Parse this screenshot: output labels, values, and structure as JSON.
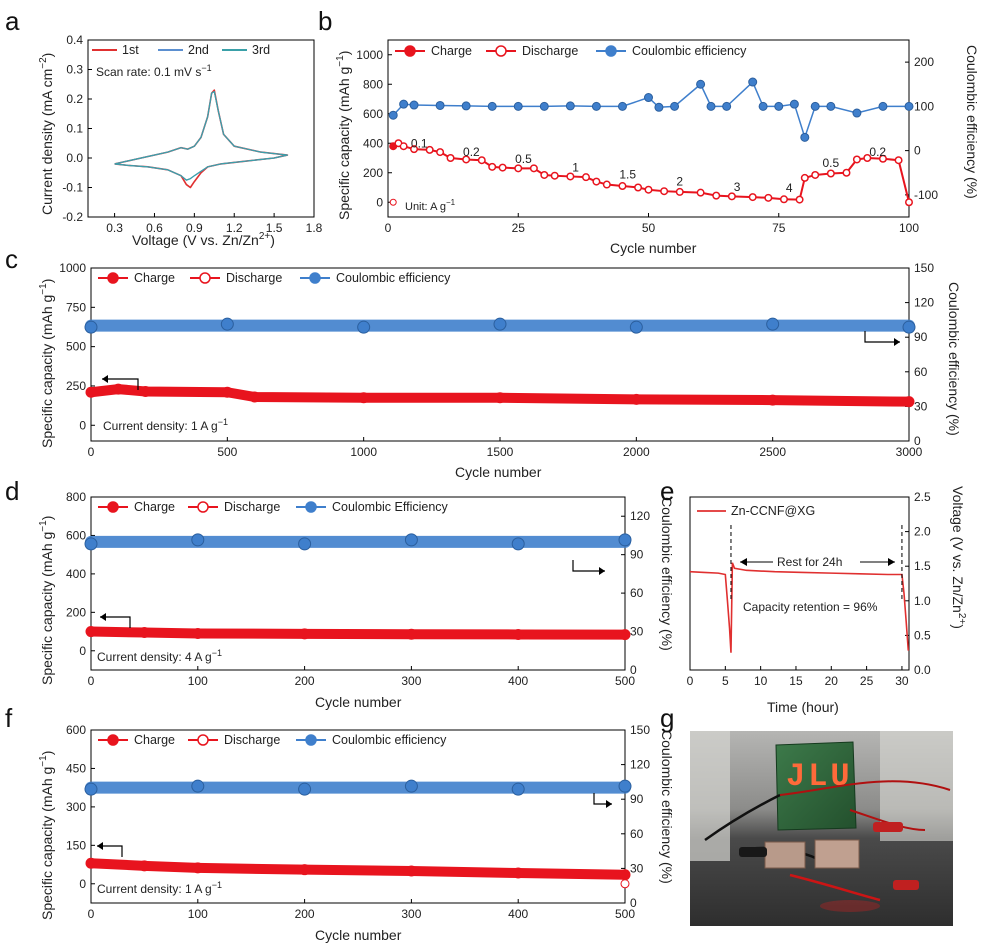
{
  "panels": {
    "a": {
      "letter": "a",
      "xlabel": "Voltage (V vs. Zn/Zn",
      "xlabel_sup": "2+",
      "xlabel_end": ")",
      "ylabel": "Current density (mA cm",
      "ylabel_sup": "−2",
      "ylabel_end": ")",
      "xticks": [
        "0.3",
        "0.6",
        "0.9",
        "1.2",
        "1.5",
        "1.8"
      ],
      "yticks": [
        "0.4",
        "0.3",
        "0.2",
        "0.1",
        "0.0",
        "-0.1",
        "-0.2"
      ],
      "legend": [
        "1st",
        "2nd",
        "3rd"
      ],
      "annotation": "Scan rate: 0.1 mV s",
      "annotation_sup": "−1"
    },
    "b": {
      "letter": "b",
      "xlabel": "Cycle number",
      "ylabel": "Specific capacity (mAh g",
      "ylabel_sup": "−1",
      "ylabel_end": ")",
      "y2label": "Coulombic efficiency (%)",
      "xticks": [
        "0",
        "25",
        "50",
        "75",
        "100"
      ],
      "yticks": [
        "1000",
        "800",
        "600",
        "400",
        "200",
        "0"
      ],
      "y2ticks": [
        "200",
        "100",
        "0",
        "-100"
      ],
      "legend": [
        "Charge",
        "Discharge",
        "Coulombic efficiency"
      ],
      "unit_note": "Unit: A g",
      "unit_sup": "−1",
      "rate_labels": [
        "0.1",
        "0.2",
        "0.5",
        "1",
        "1.5",
        "2",
        "3",
        "4",
        "0.5",
        "0.2"
      ]
    },
    "c": {
      "letter": "c",
      "xlabel": "Cycle number",
      "ylabel": "Specific capacity (mAh g",
      "ylabel_sup": "−1",
      "ylabel_end": ")",
      "y2label": "Coulombic efficiency (%)",
      "xticks": [
        "0",
        "500",
        "1000",
        "1500",
        "2000",
        "2500",
        "3000"
      ],
      "yticks": [
        "1000",
        "750",
        "500",
        "250",
        "0"
      ],
      "y2ticks": [
        "150",
        "120",
        "90",
        "60",
        "30",
        "0"
      ],
      "legend": [
        "Charge",
        "Discharge",
        "Coulombic efficiency"
      ],
      "annotation": "Current density: 1 A g",
      "annotation_sup": "−1"
    },
    "d": {
      "letter": "d",
      "xlabel": "Cycle number",
      "ylabel": "Specific capacity (mAh g",
      "ylabel_sup": "−1",
      "ylabel_end": ")",
      "y2label": "Coulombic efficiency (%)",
      "xticks": [
        "0",
        "100",
        "200",
        "300",
        "400",
        "500"
      ],
      "yticks": [
        "800",
        "600",
        "400",
        "200",
        "0"
      ],
      "y2ticks": [
        "120",
        "90",
        "60",
        "30",
        "0"
      ],
      "legend": [
        "Charge",
        "Discharge",
        "Coulombic Efficiency"
      ],
      "annotation": "Current density: 4 A g",
      "annotation_sup": "−1"
    },
    "e": {
      "letter": "e",
      "xlabel": "Time (hour)",
      "ylabel": "Voltage (V vs. Zn/Zn",
      "ylabel_sup": "2+",
      "ylabel_end": ")",
      "xticks": [
        "0",
        "5",
        "10",
        "15",
        "20",
        "25",
        "30"
      ],
      "yticks": [
        "2.5",
        "2.0",
        "1.5",
        "1.0",
        "0.5",
        "0.0"
      ],
      "legend": [
        "Zn-CCNF@XG"
      ],
      "rest_label": "Rest for 24h",
      "retention_label": "Capacity retention = 96%"
    },
    "f": {
      "letter": "f",
      "xlabel": "Cycle number",
      "ylabel": "Specific capacity (mAh g",
      "ylabel_sup": "−1",
      "ylabel_end": ")",
      "y2label": "Coulombic efficiency (%)",
      "xticks": [
        "0",
        "100",
        "200",
        "300",
        "400",
        "500"
      ],
      "yticks": [
        "600",
        "450",
        "300",
        "150",
        "0"
      ],
      "y2ticks": [
        "150",
        "120",
        "90",
        "60",
        "30",
        "0"
      ],
      "legend": [
        "Charge",
        "Discharge",
        "Coulombic efficiency"
      ],
      "annotation": "Current density: 1 A g",
      "annotation_sup": "−1"
    },
    "g": {
      "letter": "g",
      "led_text": "JLU"
    }
  },
  "colors": {
    "charge": "#e8141e",
    "discharge": "#e8141e",
    "ce": "#3f7fcc",
    "cv1": "#e03030",
    "cv2": "#5b8fd0",
    "cv3": "#3aa0a8"
  },
  "chart_data": [
    {
      "panel": "a",
      "type": "line",
      "xlim": [
        0.1,
        1.8
      ],
      "ylim": [
        -0.2,
        0.4
      ],
      "series": [
        {
          "name": "1st",
          "x": [
            0.3,
            0.5,
            0.7,
            0.8,
            0.85,
            0.9,
            0.95,
            1.0,
            1.03,
            1.05,
            1.08,
            1.12,
            1.2,
            1.4,
            1.6,
            1.5,
            1.3,
            1.1,
            1.0,
            0.95,
            0.9,
            0.87,
            0.84,
            0.8,
            0.7,
            0.55,
            0.4,
            0.3
          ],
          "y": [
            -0.02,
            0.0,
            0.02,
            0.035,
            0.03,
            0.04,
            0.07,
            0.14,
            0.22,
            0.23,
            0.16,
            0.08,
            0.04,
            0.02,
            0.01,
            0.0,
            -0.01,
            -0.02,
            -0.03,
            -0.05,
            -0.08,
            -0.1,
            -0.09,
            -0.06,
            -0.04,
            -0.03,
            -0.025,
            -0.02
          ]
        },
        {
          "name": "2nd",
          "x": [
            0.3,
            0.5,
            0.7,
            0.8,
            0.85,
            0.9,
            0.95,
            1.0,
            1.03,
            1.05,
            1.08,
            1.12,
            1.2,
            1.4,
            1.6,
            1.5,
            1.3,
            1.1,
            1.0,
            0.95,
            0.9,
            0.87,
            0.84,
            0.8,
            0.7,
            0.55,
            0.4,
            0.3
          ],
          "y": [
            -0.02,
            0.0,
            0.02,
            0.035,
            0.03,
            0.04,
            0.07,
            0.14,
            0.22,
            0.225,
            0.16,
            0.08,
            0.04,
            0.02,
            0.01,
            0.0,
            -0.01,
            -0.02,
            -0.03,
            -0.045,
            -0.06,
            -0.07,
            -0.075,
            -0.06,
            -0.04,
            -0.03,
            -0.025,
            -0.02
          ]
        },
        {
          "name": "3rd",
          "x": [
            0.3,
            0.5,
            0.7,
            0.8,
            0.85,
            0.9,
            0.95,
            1.0,
            1.03,
            1.05,
            1.08,
            1.12,
            1.2,
            1.4,
            1.6,
            1.5,
            1.3,
            1.1,
            1.0,
            0.95,
            0.9,
            0.87,
            0.84,
            0.8,
            0.7,
            0.55,
            0.4,
            0.3
          ],
          "y": [
            -0.02,
            0.0,
            0.02,
            0.035,
            0.03,
            0.04,
            0.07,
            0.14,
            0.22,
            0.225,
            0.16,
            0.08,
            0.04,
            0.02,
            0.01,
            0.0,
            -0.01,
            -0.02,
            -0.03,
            -0.045,
            -0.06,
            -0.07,
            -0.075,
            -0.06,
            -0.04,
            -0.03,
            -0.025,
            -0.02
          ]
        }
      ]
    },
    {
      "panel": "b",
      "type": "scatter",
      "xlim": [
        0,
        100
      ],
      "ylim": [
        -100,
        1100
      ],
      "y2lim": [
        -150,
        250
      ],
      "series": [
        {
          "name": "Charge",
          "x": [
            1,
            2,
            3,
            5,
            8,
            10,
            12,
            15,
            18,
            20,
            22,
            25,
            28,
            30,
            32,
            35,
            38,
            40,
            42,
            45,
            48,
            50,
            53,
            56,
            60,
            63,
            66,
            70,
            73,
            76,
            79,
            80,
            82,
            85,
            88,
            90,
            92,
            95,
            98,
            100
          ],
          "y": [
            380,
            400,
            380,
            360,
            355,
            340,
            300,
            290,
            285,
            240,
            235,
            230,
            230,
            185,
            180,
            175,
            170,
            140,
            120,
            110,
            100,
            85,
            75,
            70,
            65,
            45,
            40,
            35,
            30,
            20,
            18,
            165,
            185,
            195,
            200,
            290,
            300,
            295,
            285,
            0
          ]
        },
        {
          "name": "Discharge",
          "x": [
            1,
            2,
            3,
            5,
            8,
            10,
            12,
            15,
            18,
            20,
            22,
            25,
            28,
            30,
            32,
            35,
            38,
            40,
            42,
            45,
            48,
            50,
            53,
            56,
            60,
            63,
            66,
            70,
            73,
            76,
            79,
            80,
            82,
            85,
            88,
            90,
            92,
            95,
            98,
            100
          ],
          "y": [
            0,
            400,
            380,
            360,
            355,
            340,
            300,
            290,
            285,
            240,
            235,
            230,
            230,
            185,
            180,
            175,
            170,
            140,
            120,
            110,
            100,
            85,
            75,
            70,
            65,
            45,
            40,
            35,
            30,
            20,
            18,
            165,
            185,
            195,
            200,
            290,
            300,
            295,
            285,
            0
          ]
        },
        {
          "name": "Coulombic efficiency",
          "x": [
            1,
            3,
            5,
            10,
            15,
            20,
            25,
            30,
            35,
            40,
            45,
            50,
            52,
            55,
            60,
            62,
            65,
            70,
            72,
            75,
            78,
            80,
            82,
            85,
            90,
            95,
            100
          ],
          "y": [
            80,
            105,
            103,
            102,
            101,
            100,
            100,
            100,
            101,
            100,
            100,
            120,
            98,
            100,
            150,
            100,
            100,
            155,
            100,
            100,
            105,
            30,
            100,
            100,
            85,
            100,
            100
          ]
        }
      ],
      "annotations": [
        "0.1",
        "0.2",
        "0.5",
        "1",
        "1.5",
        "2",
        "3",
        "4",
        "0.5",
        "0.2"
      ]
    },
    {
      "panel": "c",
      "type": "scatter",
      "xlim": [
        0,
        3000
      ],
      "ylim": [
        -100,
        1000
      ],
      "y2lim": [
        0,
        150
      ],
      "series": [
        {
          "name": "Charge",
          "x": [
            0,
            100,
            200,
            500,
            600,
            1000,
            1500,
            2000,
            2500,
            3000
          ],
          "y": [
            210,
            230,
            215,
            210,
            180,
            175,
            175,
            165,
            160,
            150
          ]
        },
        {
          "name": "Discharge",
          "x": [
            0,
            100,
            200,
            500,
            600,
            1000,
            1500,
            2000,
            2500,
            3000
          ],
          "y": [
            210,
            230,
            215,
            210,
            180,
            175,
            175,
            165,
            160,
            150
          ]
        },
        {
          "name": "Coulombic efficiency",
          "x": [
            0,
            500,
            1000,
            1500,
            2000,
            2500,
            3000
          ],
          "y": [
            100,
            100,
            100,
            100,
            100,
            100,
            100
          ]
        }
      ]
    },
    {
      "panel": "d",
      "type": "scatter",
      "xlim": [
        0,
        500
      ],
      "ylim": [
        -100,
        800
      ],
      "y2lim": [
        0,
        135
      ],
      "series": [
        {
          "name": "Charge",
          "x": [
            0,
            50,
            100,
            200,
            300,
            400,
            500
          ],
          "y": [
            100,
            95,
            90,
            88,
            86,
            85,
            84
          ]
        },
        {
          "name": "Discharge",
          "x": [
            0,
            50,
            100,
            200,
            300,
            400,
            500
          ],
          "y": [
            100,
            95,
            90,
            88,
            86,
            85,
            84
          ]
        },
        {
          "name": "Coulombic Efficiency",
          "x": [
            0,
            100,
            200,
            300,
            400,
            500
          ],
          "y": [
            100,
            100,
            100,
            100,
            100,
            100
          ]
        }
      ]
    },
    {
      "panel": "e",
      "type": "line",
      "xlim": [
        0,
        31
      ],
      "ylim": [
        0,
        2.5
      ],
      "series": [
        {
          "name": "Zn-CCNF@XG",
          "x": [
            0,
            2,
            4,
            5,
            5.3,
            5.6,
            5.8,
            6,
            6.3,
            8,
            12,
            16,
            20,
            24,
            28,
            30,
            30.3,
            30.6,
            30.9
          ],
          "y": [
            1.42,
            1.41,
            1.4,
            1.38,
            1.0,
            0.6,
            0.25,
            1.55,
            1.47,
            1.44,
            1.42,
            1.41,
            1.4,
            1.39,
            1.38,
            1.38,
            1.1,
            0.7,
            0.28
          ]
        }
      ],
      "annotations": [
        "Rest for 24h",
        "Capacity retention = 96%"
      ]
    },
    {
      "panel": "f",
      "type": "scatter",
      "xlim": [
        0,
        500
      ],
      "ylim": [
        -75,
        600
      ],
      "y2lim": [
        0,
        150
      ],
      "series": [
        {
          "name": "Charge",
          "x": [
            0,
            50,
            100,
            200,
            300,
            400,
            500
          ],
          "y": [
            80,
            70,
            62,
            55,
            50,
            42,
            35
          ]
        },
        {
          "name": "Discharge",
          "x": [
            0,
            50,
            100,
            200,
            300,
            400,
            495,
            500
          ],
          "y": [
            80,
            70,
            62,
            55,
            50,
            42,
            35,
            0
          ]
        },
        {
          "name": "Coulombic efficiency",
          "x": [
            0,
            100,
            200,
            300,
            400,
            500
          ],
          "y": [
            100,
            100,
            100,
            100,
            100,
            100
          ]
        }
      ]
    }
  ]
}
